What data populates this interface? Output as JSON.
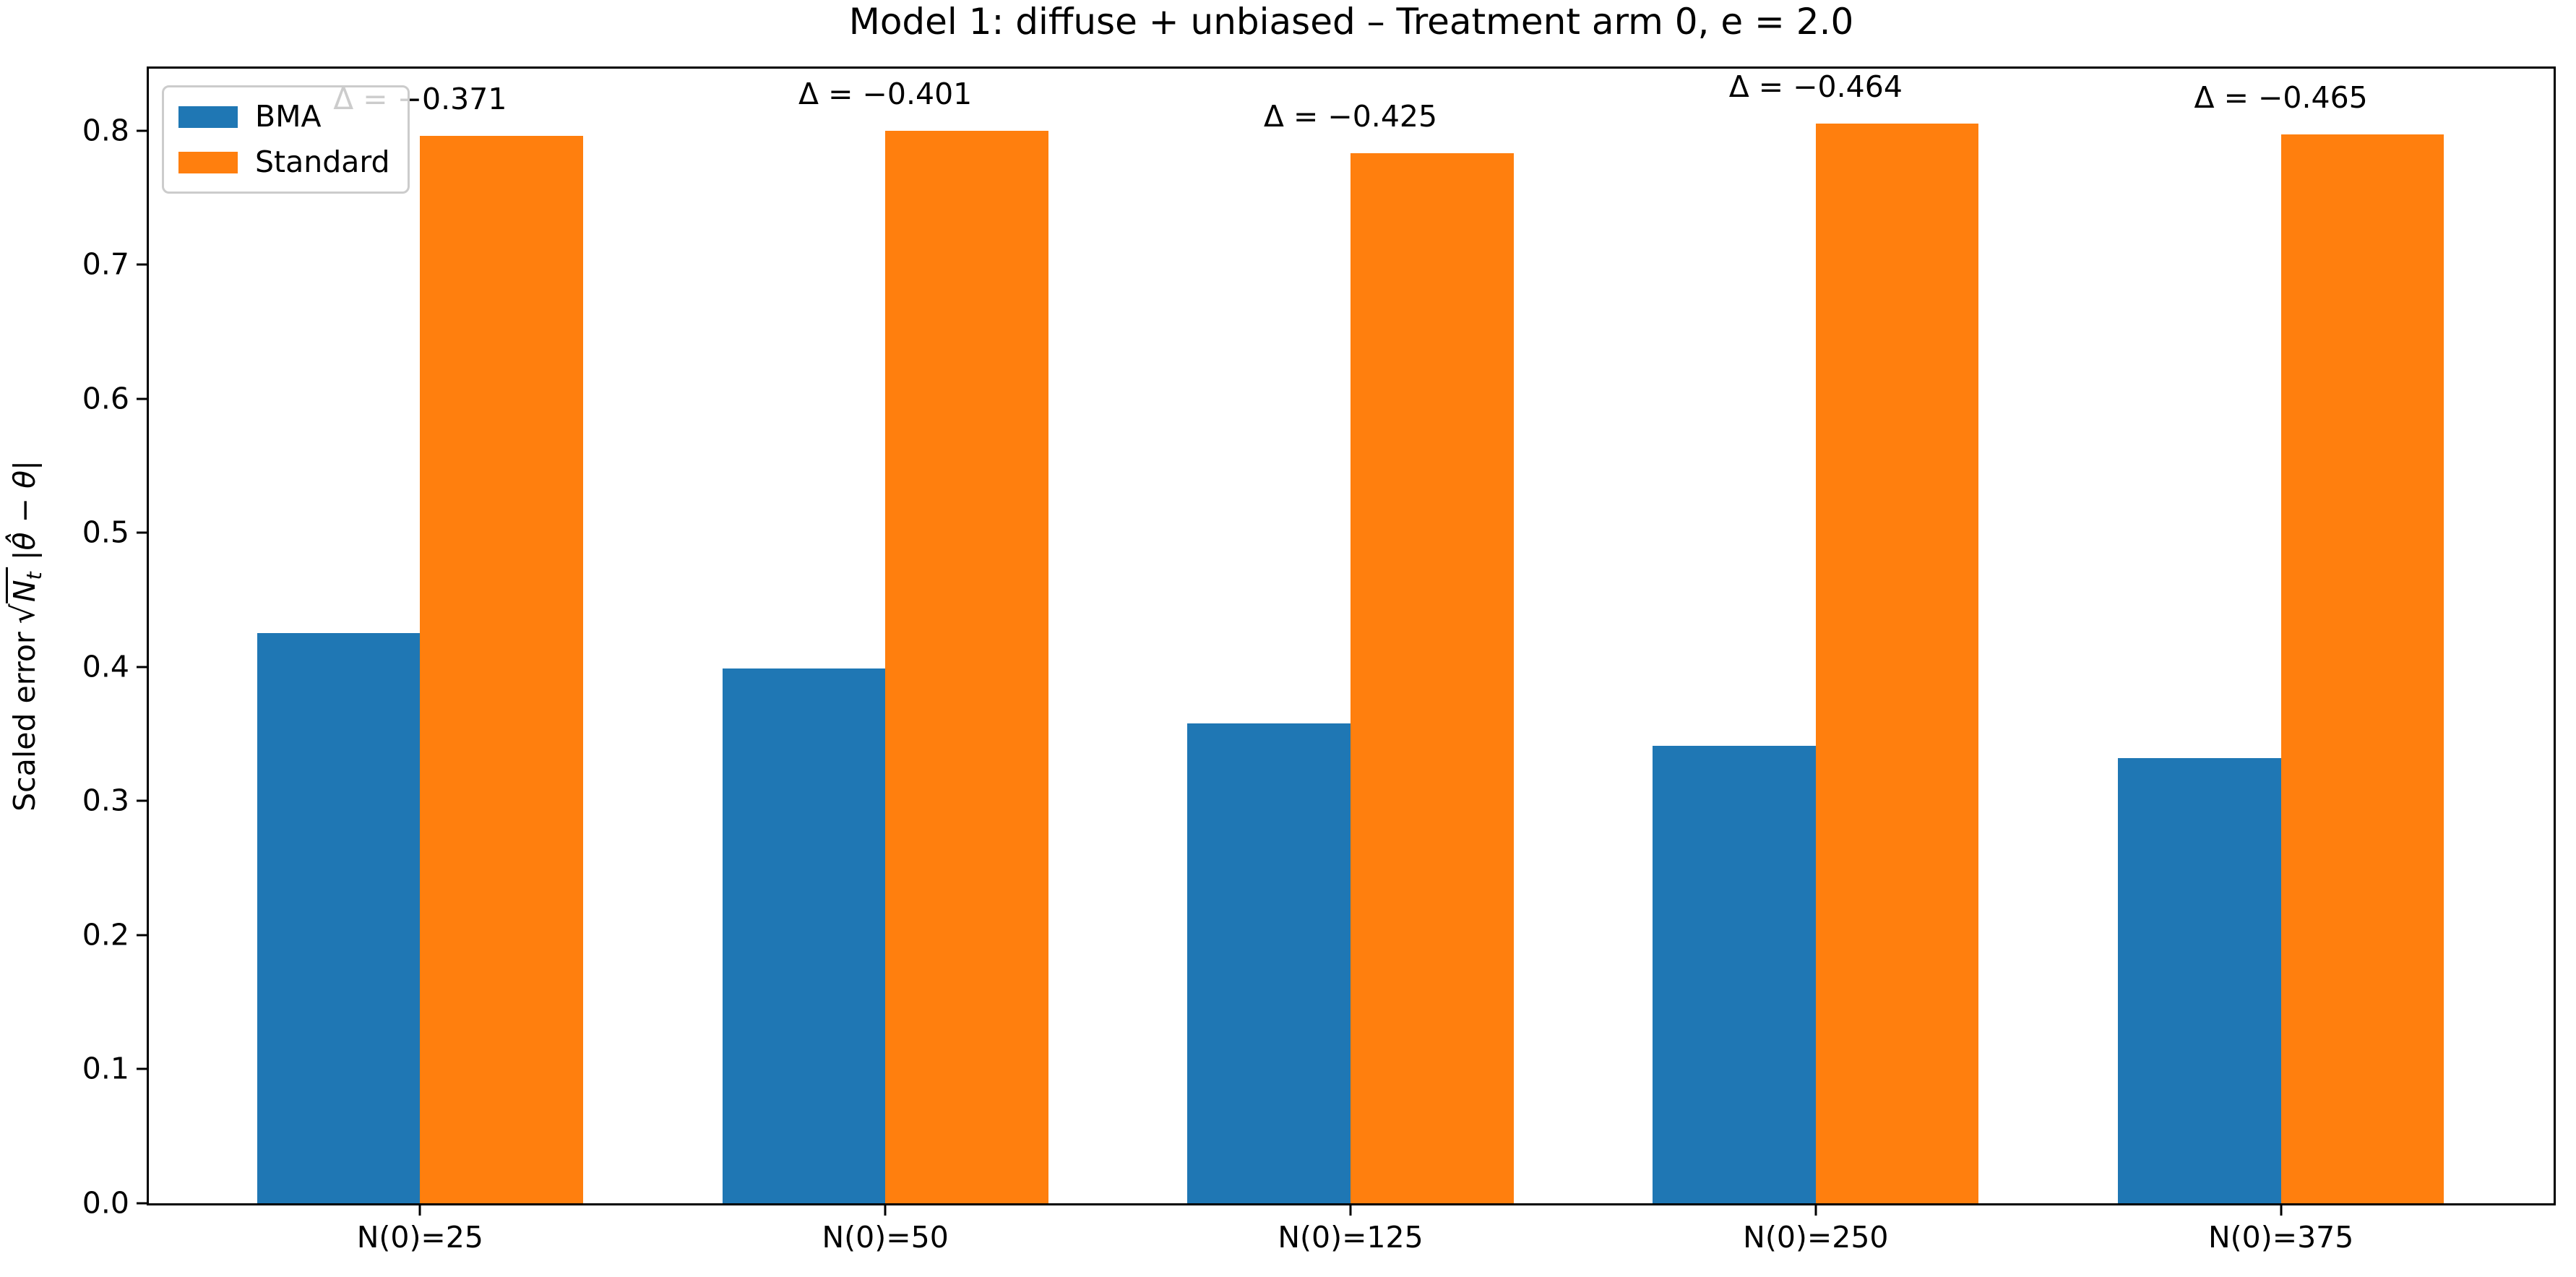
{
  "title": "Model 1: diffuse + unbiased – Treatment arm 0, e = 2.0",
  "ylabel": {
    "prefix": "Scaled error",
    "sqrt_symbol": "√",
    "sqrt_arg": "N",
    "sqrt_sub": "t",
    "suffix": "|θ̂ − θ|"
  },
  "chart_data": {
    "type": "bar",
    "title": "Model 1: diffuse + unbiased – Treatment arm 0, e = 2.0",
    "categories": [
      "N(0)=25",
      "N(0)=50",
      "N(0)=125",
      "N(0)=250",
      "N(0)=375"
    ],
    "series": [
      {
        "name": "BMA",
        "color": "#1f77b4",
        "values": [
          0.425,
          0.399,
          0.358,
          0.341,
          0.332
        ]
      },
      {
        "name": "Standard",
        "color": "#ff7f0e",
        "values": [
          0.796,
          0.8,
          0.783,
          0.805,
          0.797
        ]
      }
    ],
    "annotations": [
      {
        "group": "N(0)=25",
        "label": "Δ = −0.371"
      },
      {
        "group": "N(0)=50",
        "label": "Δ = −0.401"
      },
      {
        "group": "N(0)=125",
        "label": "Δ = −0.425"
      },
      {
        "group": "N(0)=250",
        "label": "Δ = −0.464"
      },
      {
        "group": "N(0)=375",
        "label": "Δ = −0.465"
      }
    ],
    "xlabel": "",
    "ylabel": "Scaled error √Nₜ |θ̂ − θ|",
    "yticks": [
      "0.0",
      "0.1",
      "0.2",
      "0.3",
      "0.4",
      "0.5",
      "0.6",
      "0.7",
      "0.8"
    ],
    "ylim": [
      0,
      0.8462
    ],
    "grid": false,
    "legend": {
      "position": "upper left",
      "entries": [
        "BMA",
        "Standard"
      ]
    }
  }
}
